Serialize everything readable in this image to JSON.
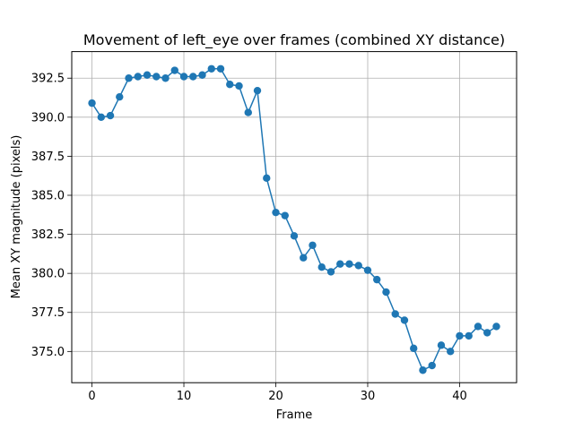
{
  "chart_data": {
    "type": "line",
    "title": "Movement of left_eye over frames (combined XY distance)",
    "xlabel": "Frame",
    "ylabel": "Mean XY magnitude (pixels)",
    "xlim": [
      -2.2,
      46.2
    ],
    "ylim": [
      373.0,
      394.2
    ],
    "xticks": [
      0,
      10,
      20,
      30,
      40
    ],
    "yticks": [
      375.0,
      377.5,
      380.0,
      382.5,
      385.0,
      387.5,
      390.0,
      392.5
    ],
    "ytick_labels": [
      "375.0",
      "377.5",
      "380.0",
      "382.5",
      "385.0",
      "387.5",
      "390.0",
      "392.5"
    ],
    "grid": true,
    "line_color": "#1f77b4",
    "marker": "circle",
    "series": [
      {
        "x": [
          0,
          1,
          2,
          3,
          4,
          5,
          6,
          7,
          8,
          9,
          10,
          11,
          12,
          13,
          14,
          15,
          16,
          17,
          18,
          19,
          20,
          21,
          22,
          23,
          24,
          25,
          26,
          27,
          28,
          29,
          30,
          31,
          32,
          33,
          34,
          35,
          36,
          37,
          38,
          39,
          40,
          41,
          42,
          43,
          44
        ],
        "values": [
          390.9,
          390.0,
          390.1,
          391.3,
          392.5,
          392.6,
          392.7,
          392.6,
          392.5,
          393.0,
          392.6,
          392.6,
          392.7,
          393.1,
          393.1,
          392.1,
          392.0,
          390.3,
          391.7,
          386.1,
          383.9,
          383.7,
          382.4,
          381.0,
          381.8,
          380.4,
          380.1,
          380.6,
          380.6,
          380.5,
          380.2,
          379.6,
          378.8,
          377.4,
          377.0,
          375.2,
          373.8,
          374.1,
          375.4,
          375.0,
          376.0,
          376.0,
          376.6,
          376.2,
          376.6
        ]
      }
    ]
  }
}
